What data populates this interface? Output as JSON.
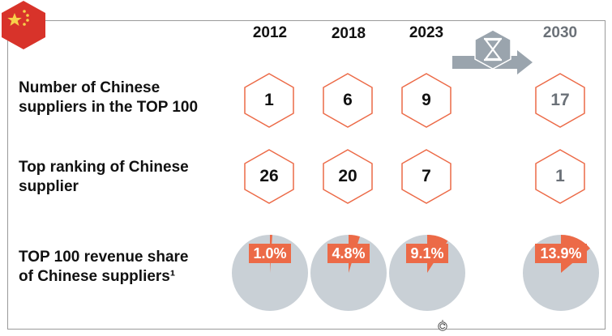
{
  "flag_icon": "china-flag-icon",
  "forecast_icon": "hourglass-icon",
  "refresh_icon": "rotate-icon",
  "colors": {
    "accent": "#ec6a47",
    "pie_bg": "#c9d0d6",
    "future_text": "#6b7178",
    "arrow": "#9aa4ad",
    "flag_red": "#d8332a",
    "flag_star": "#f7d14a"
  },
  "years": [
    "2012",
    "2018",
    "2023",
    "2030"
  ],
  "rows": {
    "suppliers_label": [
      "Number of Chinese",
      "suppliers in the TOP 100"
    ],
    "ranking_label": [
      "Top ranking of Chinese",
      "supplier"
    ],
    "share_label": [
      "TOP 100 revenue share",
      "of Chinese suppliers¹"
    ]
  },
  "suppliers_values": [
    "1",
    "6",
    "9",
    "17"
  ],
  "ranking_values": [
    "26",
    "20",
    "7",
    "1"
  ],
  "chart_data": {
    "type": "pie",
    "title": "TOP 100 revenue share of Chinese suppliers¹",
    "categories": [
      "2012",
      "2018",
      "2023",
      "2030"
    ],
    "values": [
      1.0,
      4.8,
      9.1,
      13.9
    ],
    "labels": [
      "1.0%",
      "4.8%",
      "9.1%",
      "13.9%"
    ],
    "unit": "%"
  }
}
